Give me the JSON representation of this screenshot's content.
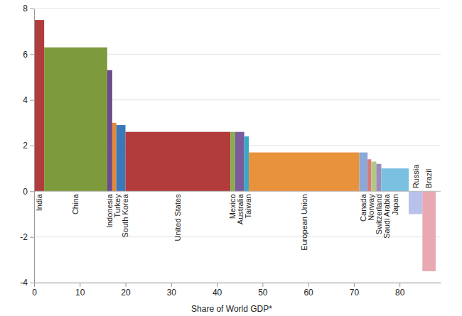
{
  "chart_data": {
    "type": "bar",
    "categories": [
      "India",
      "China",
      "Indonesia",
      "Turkey",
      "South Korea",
      "United States",
      "Mexico",
      "Australia",
      "Taiwan",
      "European Union",
      "Canada",
      "Norway",
      "Switzerland",
      "Saudi Arabia",
      "Japan",
      "Russia",
      "Brazil"
    ],
    "values": [
      7.5,
      6.3,
      5.3,
      3.0,
      2.9,
      2.6,
      2.6,
      2.6,
      2.4,
      1.7,
      1.7,
      1.4,
      1.3,
      1.2,
      1.0,
      -1.0,
      -3.5
    ],
    "widths": [
      2.2,
      13.8,
      1.1,
      0.9,
      2.0,
      23.0,
      1.0,
      2.0,
      1.0,
      24.2,
      1.8,
      0.8,
      1.1,
      1.1,
      6.0,
      3.0,
      2.9
    ],
    "colors": [
      "#b23b3b",
      "#7d9a3c",
      "#6b4c8c",
      "#e0893c",
      "#3b78b8",
      "#b23b3b",
      "#8aac4a",
      "#7a5c9c",
      "#3aa9c9",
      "#e8923c",
      "#8aa8d8",
      "#d87a7a",
      "#b2c882",
      "#9c8cba",
      "#7ac0e0",
      "#b8c2ea",
      "#e9a9b2"
    ],
    "xlabel": "Share of World GDP*",
    "xlim": [
      0,
      89
    ],
    "xticks": [
      0,
      10,
      20,
      30,
      40,
      50,
      60,
      70,
      80
    ],
    "ylim": [
      -4,
      8
    ],
    "yticks": [
      -4,
      -2,
      0,
      2,
      4,
      6,
      8
    ],
    "grid": true
  }
}
